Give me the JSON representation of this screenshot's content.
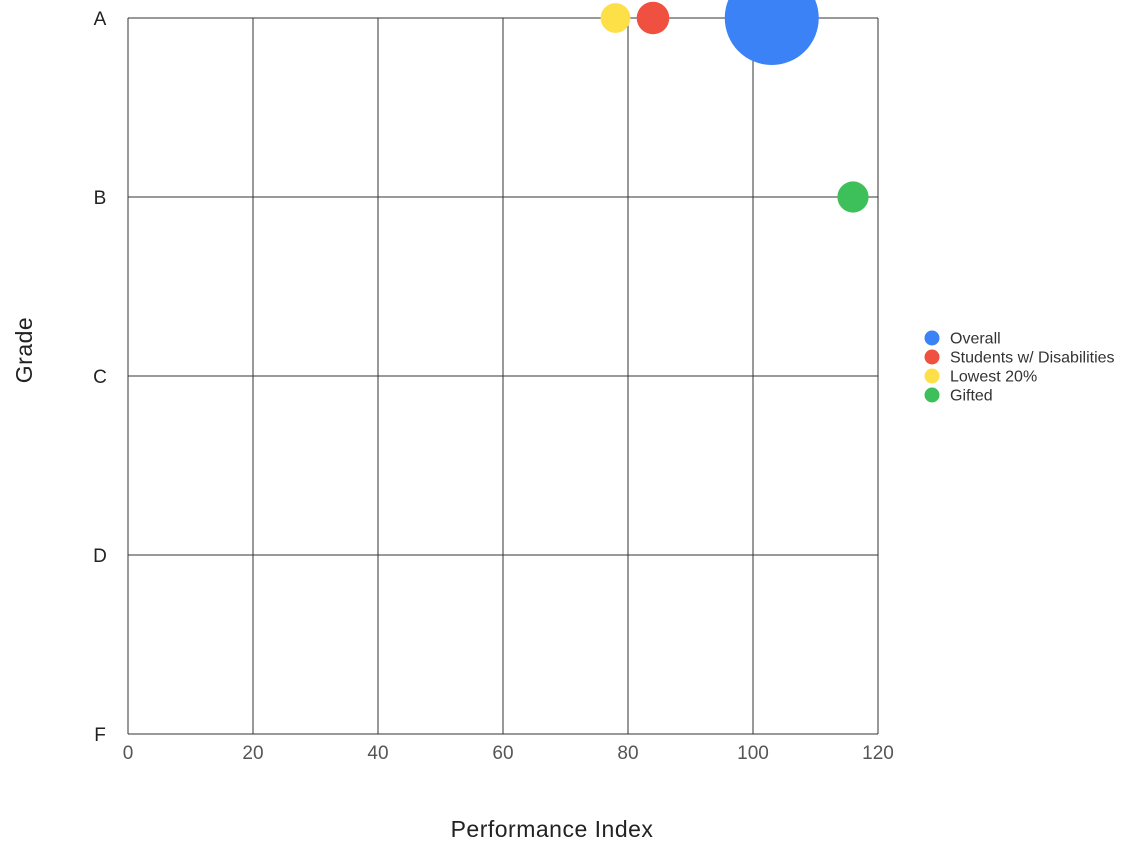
{
  "chart_data": {
    "type": "scatter",
    "title": "",
    "xlabel": "Performance Index",
    "ylabel": "Grade",
    "xlim": [
      0,
      120
    ],
    "x_ticks": [
      0,
      20,
      40,
      60,
      80,
      100,
      120
    ],
    "y_categories": [
      "A",
      "B",
      "C",
      "D",
      "F"
    ],
    "grid": true,
    "legend_position": "right",
    "series": [
      {
        "name": "Overall",
        "x": 103,
        "y": "A",
        "size": 100,
        "color": "#3b82f6"
      },
      {
        "name": "Students w/ Disabilities",
        "x": 84,
        "y": "A",
        "size": 12,
        "color": "#ef5040"
      },
      {
        "name": "Lowest 20%",
        "x": 78,
        "y": "A",
        "size": 10,
        "color": "#fde047"
      },
      {
        "name": "Gifted",
        "x": 116,
        "y": "B",
        "size": 11,
        "color": "#3dbf5a"
      }
    ]
  }
}
